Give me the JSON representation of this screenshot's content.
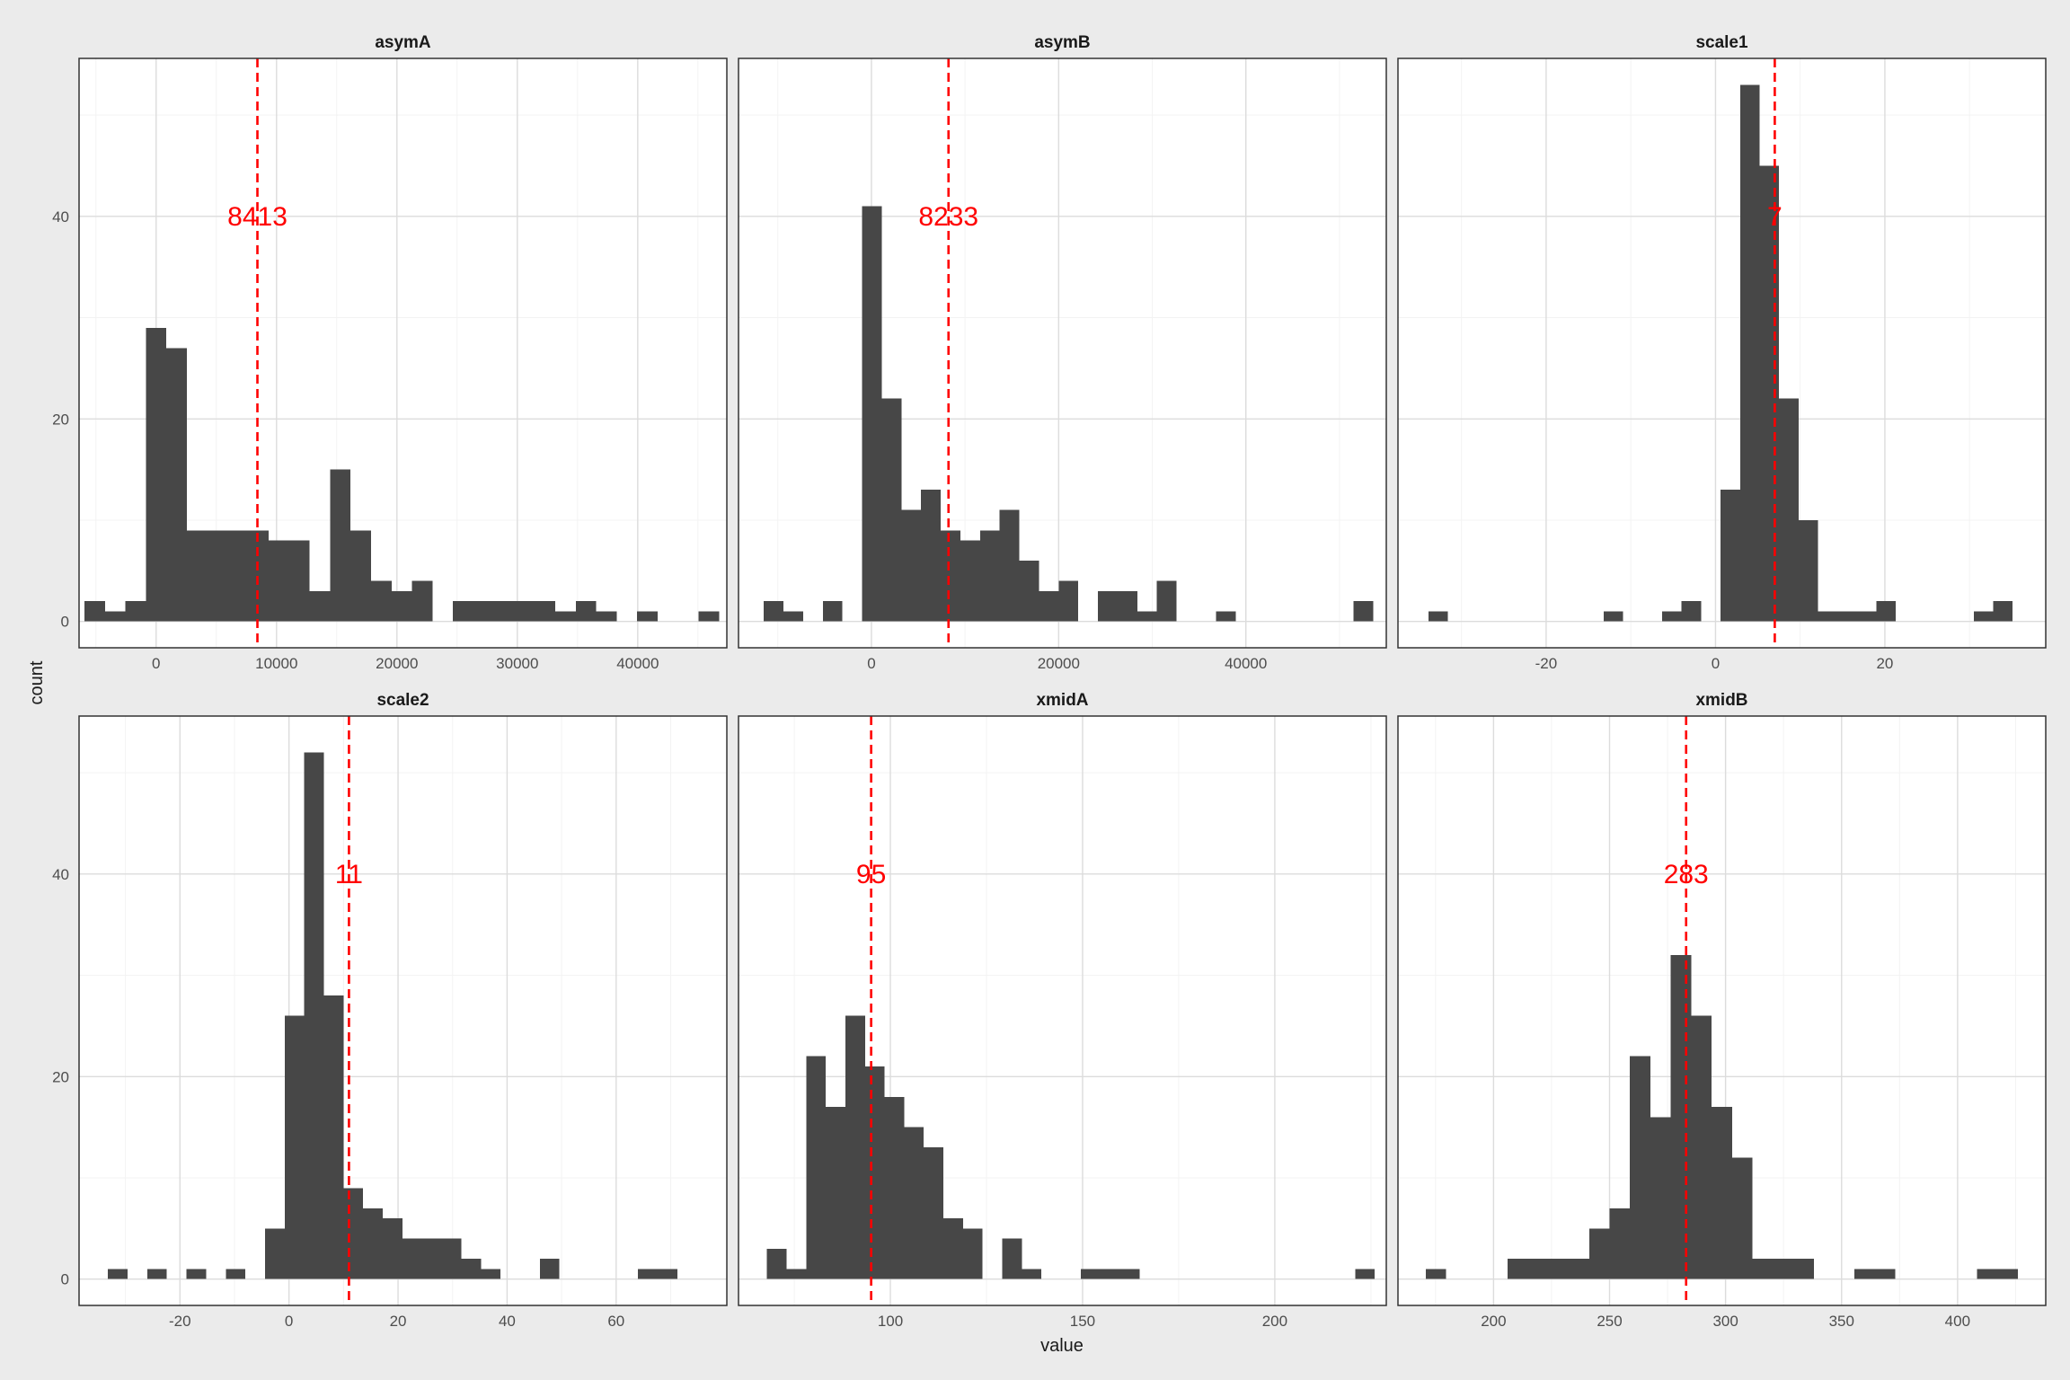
{
  "chart_data": {
    "type": "bar",
    "xlabel": "value",
    "ylabel": "count",
    "y_ticks": [
      "0",
      "20",
      "40"
    ],
    "bar_color": "#474747",
    "mean_line_color": "#ff0000",
    "mean_line_style": "dashed",
    "grid": true,
    "panels": [
      {
        "title": "asymA",
        "xlim": [
          -6400,
          47400
        ],
        "ylim": [
          -2.6,
          55.6
        ],
        "x_ticks": [
          {
            "v": 0,
            "label": "0"
          },
          {
            "v": 10000,
            "label": "10000"
          },
          {
            "v": 20000,
            "label": "20000"
          },
          {
            "v": 30000,
            "label": "30000"
          },
          {
            "v": 40000,
            "label": "40000"
          }
        ],
        "bin_start": -5950,
        "bin_width": 1700,
        "counts": [
          2,
          1,
          2,
          29,
          27,
          9,
          9,
          9,
          9,
          8,
          8,
          3,
          15,
          9,
          4,
          3,
          4,
          0,
          2,
          2,
          2,
          2,
          2,
          1,
          2,
          1,
          0,
          1,
          0,
          0,
          1
        ],
        "mean": 8413,
        "mean_label": "8413"
      },
      {
        "title": "asymB",
        "xlim": [
          -14200,
          55000
        ],
        "ylim": [
          -2.6,
          55.6
        ],
        "x_ticks": [
          {
            "v": 0,
            "label": "0"
          },
          {
            "v": 20000,
            "label": "20000"
          },
          {
            "v": 40000,
            "label": "40000"
          }
        ],
        "bin_start": -11500,
        "bin_width": 2100,
        "counts": [
          2,
          1,
          0,
          2,
          0,
          41,
          22,
          11,
          13,
          9,
          8,
          9,
          11,
          6,
          3,
          4,
          0,
          3,
          3,
          1,
          4,
          0,
          0,
          1,
          0,
          0,
          0,
          0,
          0,
          0,
          2
        ],
        "mean": 8233,
        "mean_label": "8233"
      },
      {
        "title": "scale1",
        "xlim": [
          -37.5,
          39.0
        ],
        "ylim": [
          -2.6,
          55.6
        ],
        "x_ticks": [
          {
            "v": -20,
            "label": "-20"
          },
          {
            "v": 0,
            "label": "0"
          },
          {
            "v": 20,
            "label": "20"
          }
        ],
        "bin_start": -33.9,
        "bin_width": 2.3,
        "counts": [
          1,
          0,
          0,
          0,
          0,
          0,
          0,
          0,
          0,
          1,
          0,
          0,
          1,
          2,
          0,
          13,
          53,
          45,
          22,
          10,
          1,
          1,
          1,
          2,
          0,
          0,
          0,
          0,
          1,
          2
        ],
        "mean": 7,
        "mean_label": "7"
      },
      {
        "title": "scale2",
        "xlim": [
          -38.5,
          80.3
        ],
        "ylim": [
          -2.6,
          55.6
        ],
        "x_ticks": [
          {
            "v": -20,
            "label": "-20"
          },
          {
            "v": 0,
            "label": "0"
          },
          {
            "v": 20,
            "label": "20"
          },
          {
            "v": 40,
            "label": "40"
          },
          {
            "v": 60,
            "label": "60"
          }
        ],
        "bin_start": -33.2,
        "bin_width": 3.6,
        "counts": [
          1,
          0,
          1,
          0,
          1,
          0,
          1,
          0,
          5,
          26,
          52,
          28,
          9,
          7,
          6,
          4,
          4,
          4,
          2,
          1,
          0,
          0,
          2,
          0,
          0,
          0,
          0,
          1,
          1
        ],
        "mean": 11,
        "mean_label": "11"
      },
      {
        "title": "xmidA",
        "xlim": [
          60.5,
          229.0
        ],
        "ylim": [
          -2.6,
          55.6
        ],
        "x_ticks": [
          {
            "v": 100,
            "label": "100"
          },
          {
            "v": 150,
            "label": "150"
          },
          {
            "v": 200,
            "label": "200"
          }
        ],
        "bin_start": 67.9,
        "bin_width": 5.1,
        "counts": [
          3,
          1,
          22,
          17,
          26,
          21,
          18,
          15,
          13,
          6,
          5,
          0,
          4,
          1,
          0,
          0,
          1,
          1,
          1,
          0,
          0,
          0,
          0,
          0,
          0,
          0,
          0,
          0,
          0,
          0,
          1
        ],
        "mean": 95,
        "mean_label": "95"
      },
      {
        "title": "xmidB",
        "xlim": [
          158.8,
          438.0
        ],
        "ylim": [
          -2.6,
          55.6
        ],
        "x_ticks": [
          {
            "v": 200,
            "label": "200"
          },
          {
            "v": 250,
            "label": "250"
          },
          {
            "v": 300,
            "label": "300"
          },
          {
            "v": 350,
            "label": "350"
          },
          {
            "v": 400,
            "label": "400"
          }
        ],
        "bin_start": 170.8,
        "bin_width": 8.8,
        "counts": [
          1,
          0,
          0,
          0,
          2,
          2,
          2,
          2,
          5,
          7,
          22,
          16,
          32,
          26,
          17,
          12,
          2,
          2,
          2,
          0,
          0,
          1,
          1,
          0,
          0,
          0,
          0,
          1,
          1
        ],
        "mean": 283,
        "mean_label": "283"
      }
    ]
  }
}
